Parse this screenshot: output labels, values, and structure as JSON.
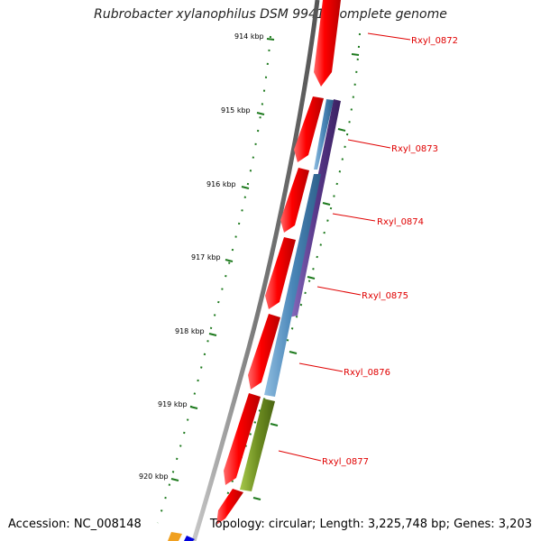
{
  "title": "Rubrobacter xylanophilus DSM 9941, complete genome",
  "accession": "Accession: NC_008148",
  "topology": "Topology: circular; Length: 3,225,748 bp; Genes: 3,203",
  "ruler": [
    {
      "label": "914 kbp"
    },
    {
      "label": "915 kbp"
    },
    {
      "label": "916 kbp"
    },
    {
      "label": "917 kbp"
    },
    {
      "label": "918 kbp"
    },
    {
      "label": "919 kbp"
    },
    {
      "label": "920 kbp"
    }
  ],
  "genes": [
    {
      "label": "Rxyl_0872"
    },
    {
      "label": "Rxyl_0873"
    },
    {
      "label": "Rxyl_0874"
    },
    {
      "label": "Rxyl_0875"
    },
    {
      "label": "Rxyl_0876"
    },
    {
      "label": "Rxyl_0877"
    }
  ],
  "colors": {
    "gene_forward": "#ee0000",
    "segment_blue": "#4a86b8",
    "segment_purple": "#5a3a8c",
    "segment_olive": "#6f8f22",
    "backbone": "#8a8a8a",
    "ruler_ticks": "#1e7a1e",
    "gene_label": "#e00000"
  }
}
